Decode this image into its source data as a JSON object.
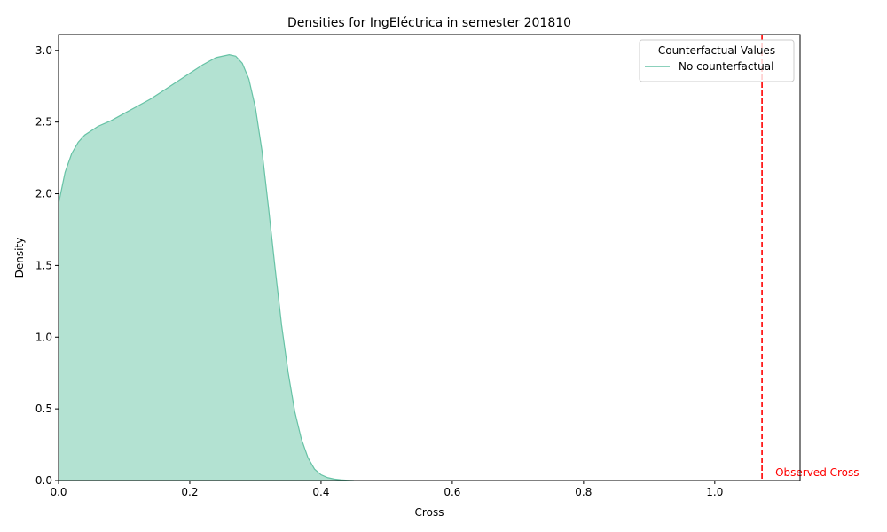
{
  "chart_data": {
    "type": "area",
    "title": "Densities for IngEléctrica in semester 201810",
    "xlabel": "Cross",
    "ylabel": "Density",
    "xlim": [
      0,
      1.13
    ],
    "ylim": [
      0,
      3.11
    ],
    "xticks": [
      0.0,
      0.2,
      0.4,
      0.6,
      0.8,
      1.0
    ],
    "xtick_labels": [
      "0.0",
      "0.2",
      "0.4",
      "0.6",
      "0.8",
      "1.0"
    ],
    "yticks": [
      0.0,
      0.5,
      1.0,
      1.5,
      2.0,
      2.5,
      3.0
    ],
    "ytick_labels": [
      "0.0",
      "0.5",
      "1.0",
      "1.5",
      "2.0",
      "2.5",
      "3.0"
    ],
    "grid": false,
    "legend": {
      "title": "Counterfactual Values",
      "position": "top-right",
      "entries": [
        {
          "label": "No counterfactual",
          "color": "#66c2a5"
        }
      ]
    },
    "series": [
      {
        "name": "No counterfactual",
        "color": "#66c2a5",
        "fill": "#b3e2d2",
        "x": [
          0.0,
          0.01,
          0.02,
          0.03,
          0.04,
          0.05,
          0.06,
          0.08,
          0.1,
          0.12,
          0.14,
          0.16,
          0.18,
          0.2,
          0.22,
          0.24,
          0.25,
          0.26,
          0.27,
          0.28,
          0.29,
          0.3,
          0.31,
          0.32,
          0.33,
          0.34,
          0.35,
          0.36,
          0.37,
          0.38,
          0.39,
          0.4,
          0.41,
          0.42,
          0.43,
          0.44,
          0.45
        ],
        "y": [
          1.93,
          2.15,
          2.28,
          2.36,
          2.41,
          2.44,
          2.47,
          2.51,
          2.56,
          2.61,
          2.66,
          2.72,
          2.78,
          2.84,
          2.9,
          2.95,
          2.96,
          2.97,
          2.96,
          2.91,
          2.8,
          2.6,
          2.3,
          1.9,
          1.48,
          1.08,
          0.75,
          0.48,
          0.29,
          0.16,
          0.08,
          0.04,
          0.02,
          0.01,
          0.005,
          0.002,
          0.0
        ]
      }
    ],
    "annotations": [
      {
        "type": "vline",
        "x": 1.072,
        "color": "#ff0000",
        "style": "dashed",
        "label": "Observed Cross"
      }
    ]
  }
}
